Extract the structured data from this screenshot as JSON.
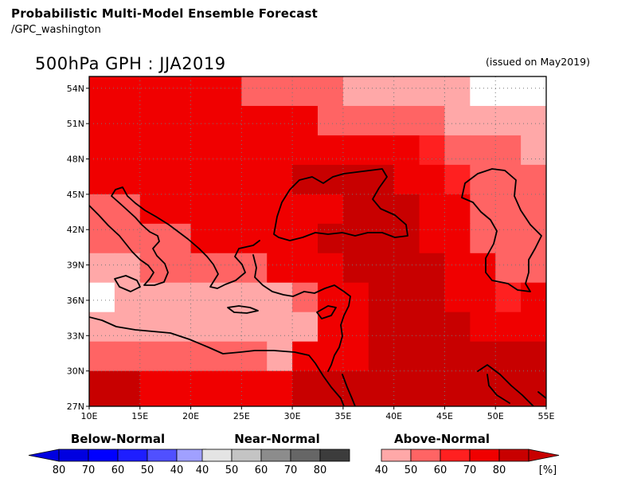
{
  "header": {
    "title": "Probabilistic Multi-Model Ensemble Forecast",
    "source": "/GPC_washington",
    "subtitle": "500hPa GPH : JJA2019",
    "issued": "(issued on May2019)"
  },
  "map": {
    "lat_labels": [
      "54N",
      "51N",
      "48N",
      "45N",
      "42N",
      "39N",
      "36N",
      "33N",
      "30N",
      "27N"
    ],
    "lon_labels": [
      "10E",
      "15E",
      "20E",
      "25E",
      "30E",
      "35E",
      "40E",
      "45E",
      "50E",
      "55E"
    ],
    "lat_values": [
      54,
      51,
      48,
      45,
      42,
      39,
      36,
      33,
      30,
      27
    ],
    "lon_values": [
      10,
      15,
      20,
      25,
      30,
      35,
      40,
      45,
      50,
      55
    ],
    "lat_range": [
      27,
      55
    ],
    "lon_range": [
      10,
      55
    ],
    "category_colors": {
      "0": "#ffffff",
      "1": "#ffa8a8",
      "2": "#ff6464",
      "3": "#ff2020",
      "4": "#f00000",
      "5": "#c80000"
    },
    "probability_grid": {
      "lon_edges": [
        10,
        12.5,
        15,
        17.5,
        20,
        22.5,
        25,
        27.5,
        30,
        32.5,
        35,
        37.5,
        40,
        42.5,
        45,
        47.5,
        50,
        52.5,
        55
      ],
      "lat_edges": [
        55,
        52.5,
        50,
        47.5,
        45,
        42.5,
        40,
        37.5,
        35,
        32.5,
        30,
        27.5,
        27
      ],
      "rows": [
        [
          4,
          4,
          4,
          4,
          4,
          4,
          2,
          2,
          2,
          2,
          1,
          1,
          1,
          1,
          1,
          0,
          0,
          0
        ],
        [
          4,
          4,
          4,
          4,
          4,
          4,
          4,
          4,
          4,
          2,
          2,
          2,
          2,
          2,
          1,
          1,
          1,
          1
        ],
        [
          4,
          4,
          4,
          4,
          4,
          4,
          4,
          4,
          4,
          4,
          4,
          4,
          4,
          3,
          2,
          2,
          2,
          1
        ],
        [
          4,
          4,
          4,
          4,
          4,
          4,
          4,
          4,
          5,
          5,
          5,
          5,
          4,
          4,
          3,
          2,
          2,
          2
        ],
        [
          2,
          2,
          4,
          4,
          4,
          4,
          4,
          4,
          4,
          4,
          5,
          5,
          5,
          4,
          4,
          2,
          2,
          2
        ],
        [
          2,
          2,
          2,
          2,
          4,
          4,
          4,
          4,
          4,
          5,
          5,
          5,
          5,
          4,
          4,
          2,
          2,
          2
        ],
        [
          1,
          1,
          2,
          2,
          2,
          2,
          2,
          4,
          4,
          4,
          5,
          5,
          5,
          5,
          4,
          4,
          2,
          2
        ],
        [
          0,
          1,
          1,
          1,
          1,
          1,
          1,
          1,
          2,
          4,
          4,
          5,
          5,
          5,
          4,
          4,
          3,
          4
        ],
        [
          1,
          1,
          1,
          1,
          1,
          1,
          1,
          1,
          1,
          4,
          4,
          5,
          5,
          5,
          5,
          4,
          4,
          4
        ],
        [
          2,
          2,
          2,
          2,
          2,
          2,
          2,
          1,
          4,
          4,
          4,
          5,
          5,
          5,
          5,
          5,
          5,
          5
        ],
        [
          5,
          5,
          4,
          4,
          4,
          4,
          4,
          4,
          5,
          5,
          5,
          5,
          5,
          5,
          5,
          5,
          5,
          5
        ],
        [
          5,
          5,
          4,
          4,
          4,
          4,
          4,
          4,
          5,
          5,
          5,
          5,
          5,
          5,
          5,
          5,
          5,
          5
        ]
      ]
    }
  },
  "legend": {
    "below": {
      "title": "Below-Normal",
      "labels": [
        "80",
        "70",
        "60",
        "50",
        "40"
      ],
      "colors": [
        "#0000e0",
        "#0000ff",
        "#1e1eff",
        "#5050ff",
        "#a0a0ff"
      ]
    },
    "near": {
      "title": "Near-Normal",
      "labels": [
        "40",
        "50",
        "60",
        "70",
        "80"
      ],
      "colors": [
        "#e4e4e4",
        "#c4c4c4",
        "#8c8c8c",
        "#666666",
        "#3c3c3c"
      ]
    },
    "above": {
      "title": "Above-Normal",
      "labels": [
        "40",
        "50",
        "60",
        "70",
        "80",
        "[%]"
      ],
      "colors": [
        "#ffa8a8",
        "#ff6464",
        "#ff2020",
        "#f00000",
        "#c80000"
      ]
    }
  }
}
